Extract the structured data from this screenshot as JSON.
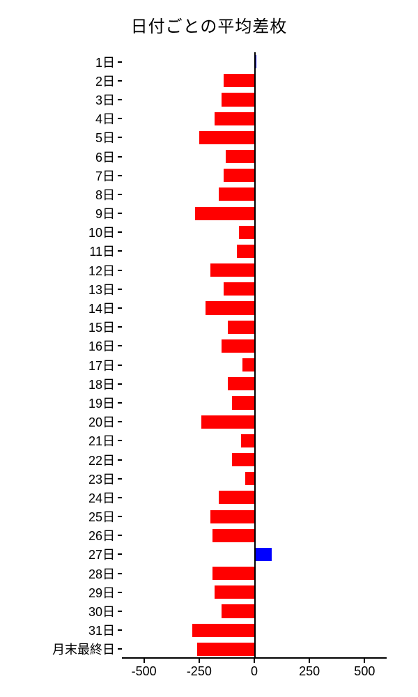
{
  "chart": {
    "type": "bar-horizontal",
    "title": "日付ごとの平均差枚",
    "title_fontsize": 24,
    "background_color": "#ffffff",
    "text_color": "#000000",
    "positive_color": "#0000ff",
    "negative_color": "#ff0000",
    "axis_color": "#000000",
    "xlim": [
      -600,
      600
    ],
    "xticks": [
      -500,
      -250,
      0,
      250,
      500
    ],
    "bar_gap_ratio": 0.15,
    "categories": [
      "1日",
      "2日",
      "3日",
      "4日",
      "5日",
      "6日",
      "7日",
      "8日",
      "9日",
      "10日",
      "11日",
      "12日",
      "13日",
      "14日",
      "15日",
      "16日",
      "17日",
      "18日",
      "19日",
      "20日",
      "21日",
      "22日",
      "23日",
      "24日",
      "25日",
      "26日",
      "27日",
      "28日",
      "29日",
      "30日",
      "31日",
      "月末最終日"
    ],
    "values": [
      10,
      -140,
      -150,
      -180,
      -250,
      -130,
      -140,
      -160,
      -270,
      -70,
      -80,
      -200,
      -140,
      -220,
      -120,
      -150,
      -55,
      -120,
      -100,
      -240,
      -60,
      -100,
      -40,
      -160,
      -200,
      -190,
      80,
      -190,
      -180,
      -150,
      -280,
      -260
    ]
  }
}
